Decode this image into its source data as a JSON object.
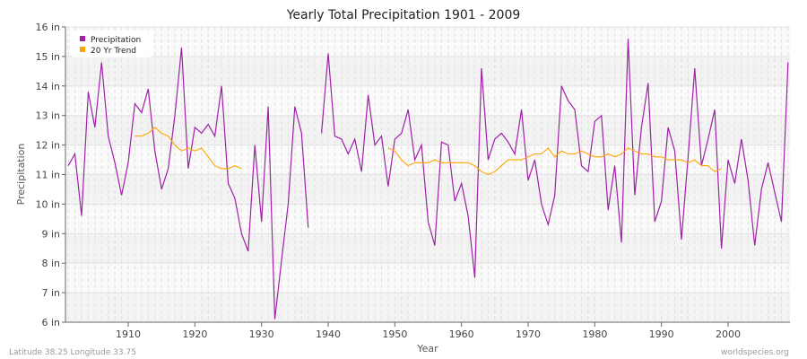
{
  "chart_data": {
    "type": "line",
    "title": "Yearly Total Precipitation 1901 - 2009",
    "xlabel": "Year",
    "ylabel": "Precipitation",
    "xlim": [
      1901,
      2009
    ],
    "ylim": [
      6,
      16
    ],
    "x_ticks": [
      1910,
      1920,
      1930,
      1940,
      1950,
      1960,
      1970,
      1980,
      1990,
      2000
    ],
    "y_ticks": [
      "6 in",
      "7 in",
      "8 in",
      "9 in",
      "10 in",
      "11 in",
      "12 in",
      "13 in",
      "14 in",
      "15 in",
      "16 in"
    ],
    "y_tick_values": [
      6,
      7,
      8,
      9,
      10,
      11,
      12,
      13,
      14,
      15,
      16
    ],
    "grid": true,
    "legend_position": "top-left",
    "x": [
      1901,
      1902,
      1903,
      1904,
      1905,
      1906,
      1907,
      1908,
      1909,
      1910,
      1911,
      1912,
      1913,
      1914,
      1915,
      1916,
      1917,
      1918,
      1919,
      1920,
      1921,
      1922,
      1923,
      1924,
      1925,
      1926,
      1927,
      1928,
      1929,
      1930,
      1931,
      1932,
      1933,
      1934,
      1935,
      1936,
      1937,
      1938,
      1939,
      1940,
      1941,
      1942,
      1943,
      1944,
      1945,
      1946,
      1947,
      1948,
      1949,
      1950,
      1951,
      1952,
      1953,
      1954,
      1955,
      1956,
      1957,
      1958,
      1959,
      1960,
      1961,
      1962,
      1963,
      1964,
      1965,
      1966,
      1967,
      1968,
      1969,
      1970,
      1971,
      1972,
      1973,
      1974,
      1975,
      1976,
      1977,
      1978,
      1979,
      1980,
      1981,
      1982,
      1983,
      1984,
      1985,
      1986,
      1987,
      1988,
      1989,
      1990,
      1991,
      1992,
      1993,
      1994,
      1995,
      1996,
      1997,
      1998,
      1999,
      2000,
      2001,
      2002,
      2003,
      2004,
      2005,
      2006,
      2007,
      2008,
      2009
    ],
    "series": [
      {
        "name": "Precipitation",
        "color": "#a020a8",
        "values": [
          11.3,
          11.7,
          9.6,
          13.8,
          12.6,
          14.8,
          12.3,
          11.4,
          10.3,
          11.4,
          13.4,
          13.1,
          13.9,
          11.8,
          10.5,
          11.2,
          13.0,
          15.3,
          11.2,
          12.6,
          12.4,
          12.7,
          12.3,
          14.0,
          10.7,
          10.2,
          9.0,
          8.4,
          12.0,
          9.4,
          13.3,
          6.1,
          8.1,
          10.0,
          13.3,
          12.4,
          9.2,
          null,
          12.4,
          15.1,
          12.3,
          12.2,
          11.7,
          12.2,
          11.1,
          13.7,
          12.0,
          12.3,
          10.6,
          12.2,
          12.4,
          13.2,
          11.5,
          12.0,
          9.4,
          8.6,
          12.1,
          12.0,
          10.1,
          10.7,
          9.6,
          7.5,
          14.6,
          11.5,
          12.2,
          12.4,
          12.1,
          11.7,
          13.2,
          10.8,
          11.5,
          10.0,
          9.3,
          10.3,
          14.0,
          13.5,
          13.2,
          11.3,
          11.1,
          12.8,
          13.0,
          9.8,
          11.3,
          8.7,
          15.6,
          10.3,
          12.6,
          14.1,
          9.4,
          10.1,
          12.6,
          11.8,
          8.8,
          11.6,
          14.6,
          11.3,
          12.2,
          13.2,
          8.5,
          11.5,
          10.7,
          12.2,
          10.8,
          8.6,
          10.5,
          11.4,
          10.4,
          9.4,
          14.8
        ]
      },
      {
        "name": "20 Yr Trend",
        "color": "#ffa500",
        "values": [
          null,
          null,
          null,
          null,
          null,
          null,
          null,
          null,
          null,
          null,
          12.3,
          12.3,
          12.4,
          12.6,
          12.4,
          12.3,
          12.0,
          11.8,
          11.9,
          11.8,
          11.9,
          11.6,
          11.3,
          11.2,
          11.2,
          11.3,
          11.2,
          null,
          null,
          null,
          null,
          null,
          null,
          null,
          null,
          null,
          null,
          null,
          null,
          null,
          null,
          null,
          null,
          null,
          null,
          null,
          null,
          null,
          11.9,
          11.8,
          11.5,
          11.3,
          11.4,
          11.4,
          11.4,
          11.5,
          11.4,
          11.4,
          11.4,
          11.4,
          11.4,
          11.3,
          11.1,
          11.0,
          11.1,
          11.3,
          11.5,
          11.5,
          11.5,
          11.6,
          11.7,
          11.7,
          11.9,
          11.6,
          11.8,
          11.7,
          11.7,
          11.8,
          11.7,
          11.6,
          11.6,
          11.7,
          11.6,
          11.7,
          11.9,
          11.8,
          11.7,
          11.7,
          11.6,
          11.6,
          11.5,
          11.5,
          11.5,
          11.4,
          11.5,
          11.3,
          11.3,
          11.1,
          11.2,
          null,
          null,
          null,
          null,
          null,
          null,
          null,
          null,
          null,
          null
        ]
      }
    ]
  },
  "footer": {
    "location": "Latitude 38.25 Longitude 33.75",
    "source": "worldspecies.org"
  }
}
